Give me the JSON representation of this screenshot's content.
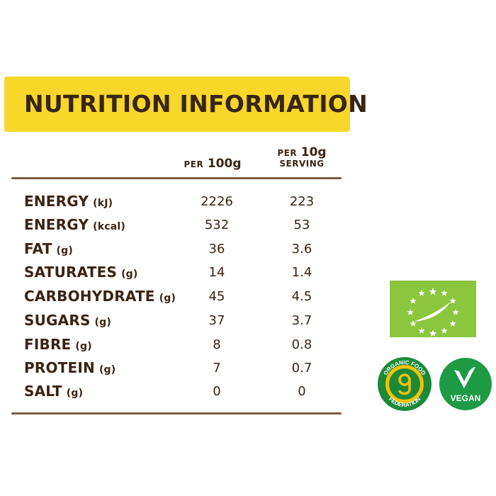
{
  "title": "NUTRITION INFORMATION",
  "columns": {
    "per100_prefix": "PER",
    "per100_value": "100g",
    "serving_prefix": "PER",
    "serving_value": "10g",
    "serving_suffix": "SERVING"
  },
  "rows": [
    {
      "name": "ENERGY",
      "unit": "(kJ)",
      "per100": "2226",
      "serving": "223"
    },
    {
      "name": "ENERGY",
      "unit": "(kcal)",
      "per100": "532",
      "serving": "53"
    },
    {
      "name": "FAT",
      "unit": "(g)",
      "per100": "36",
      "serving": "3.6"
    },
    {
      "name": "SATURATES",
      "unit": "(g)",
      "per100": "14",
      "serving": "1.4"
    },
    {
      "name": "CARBOHYDRATE",
      "unit": "(g)",
      "per100": "45",
      "serving": "4.5"
    },
    {
      "name": "SUGARS",
      "unit": "(g)",
      "per100": "37",
      "serving": "3.7"
    },
    {
      "name": "FIBRE",
      "unit": "(g)",
      "per100": "8",
      "serving": "0.8"
    },
    {
      "name": "PROTEIN",
      "unit": "(g)",
      "per100": "7",
      "serving": "0.7"
    },
    {
      "name": "SALT",
      "unit": "(g)",
      "per100": "0",
      "serving": "0"
    }
  ],
  "logos": {
    "eu_organic": {
      "icon": "eu-organic-leaf-icon",
      "color": "#8cc63f"
    },
    "organic_food_federation": {
      "icon": "organic-food-federation-seal",
      "text_top": "ORGANIC FOOD",
      "text_bottom": "FEDERATION",
      "color": "#1d8a3a",
      "ring": "#f2c200"
    },
    "vegan": {
      "icon": "vegan-v-icon",
      "label": "VEGAN",
      "color": "#1e9a45"
    }
  },
  "colors": {
    "banner": "#f6d72a",
    "text": "#3a2414",
    "rule": "#7a5a44"
  }
}
